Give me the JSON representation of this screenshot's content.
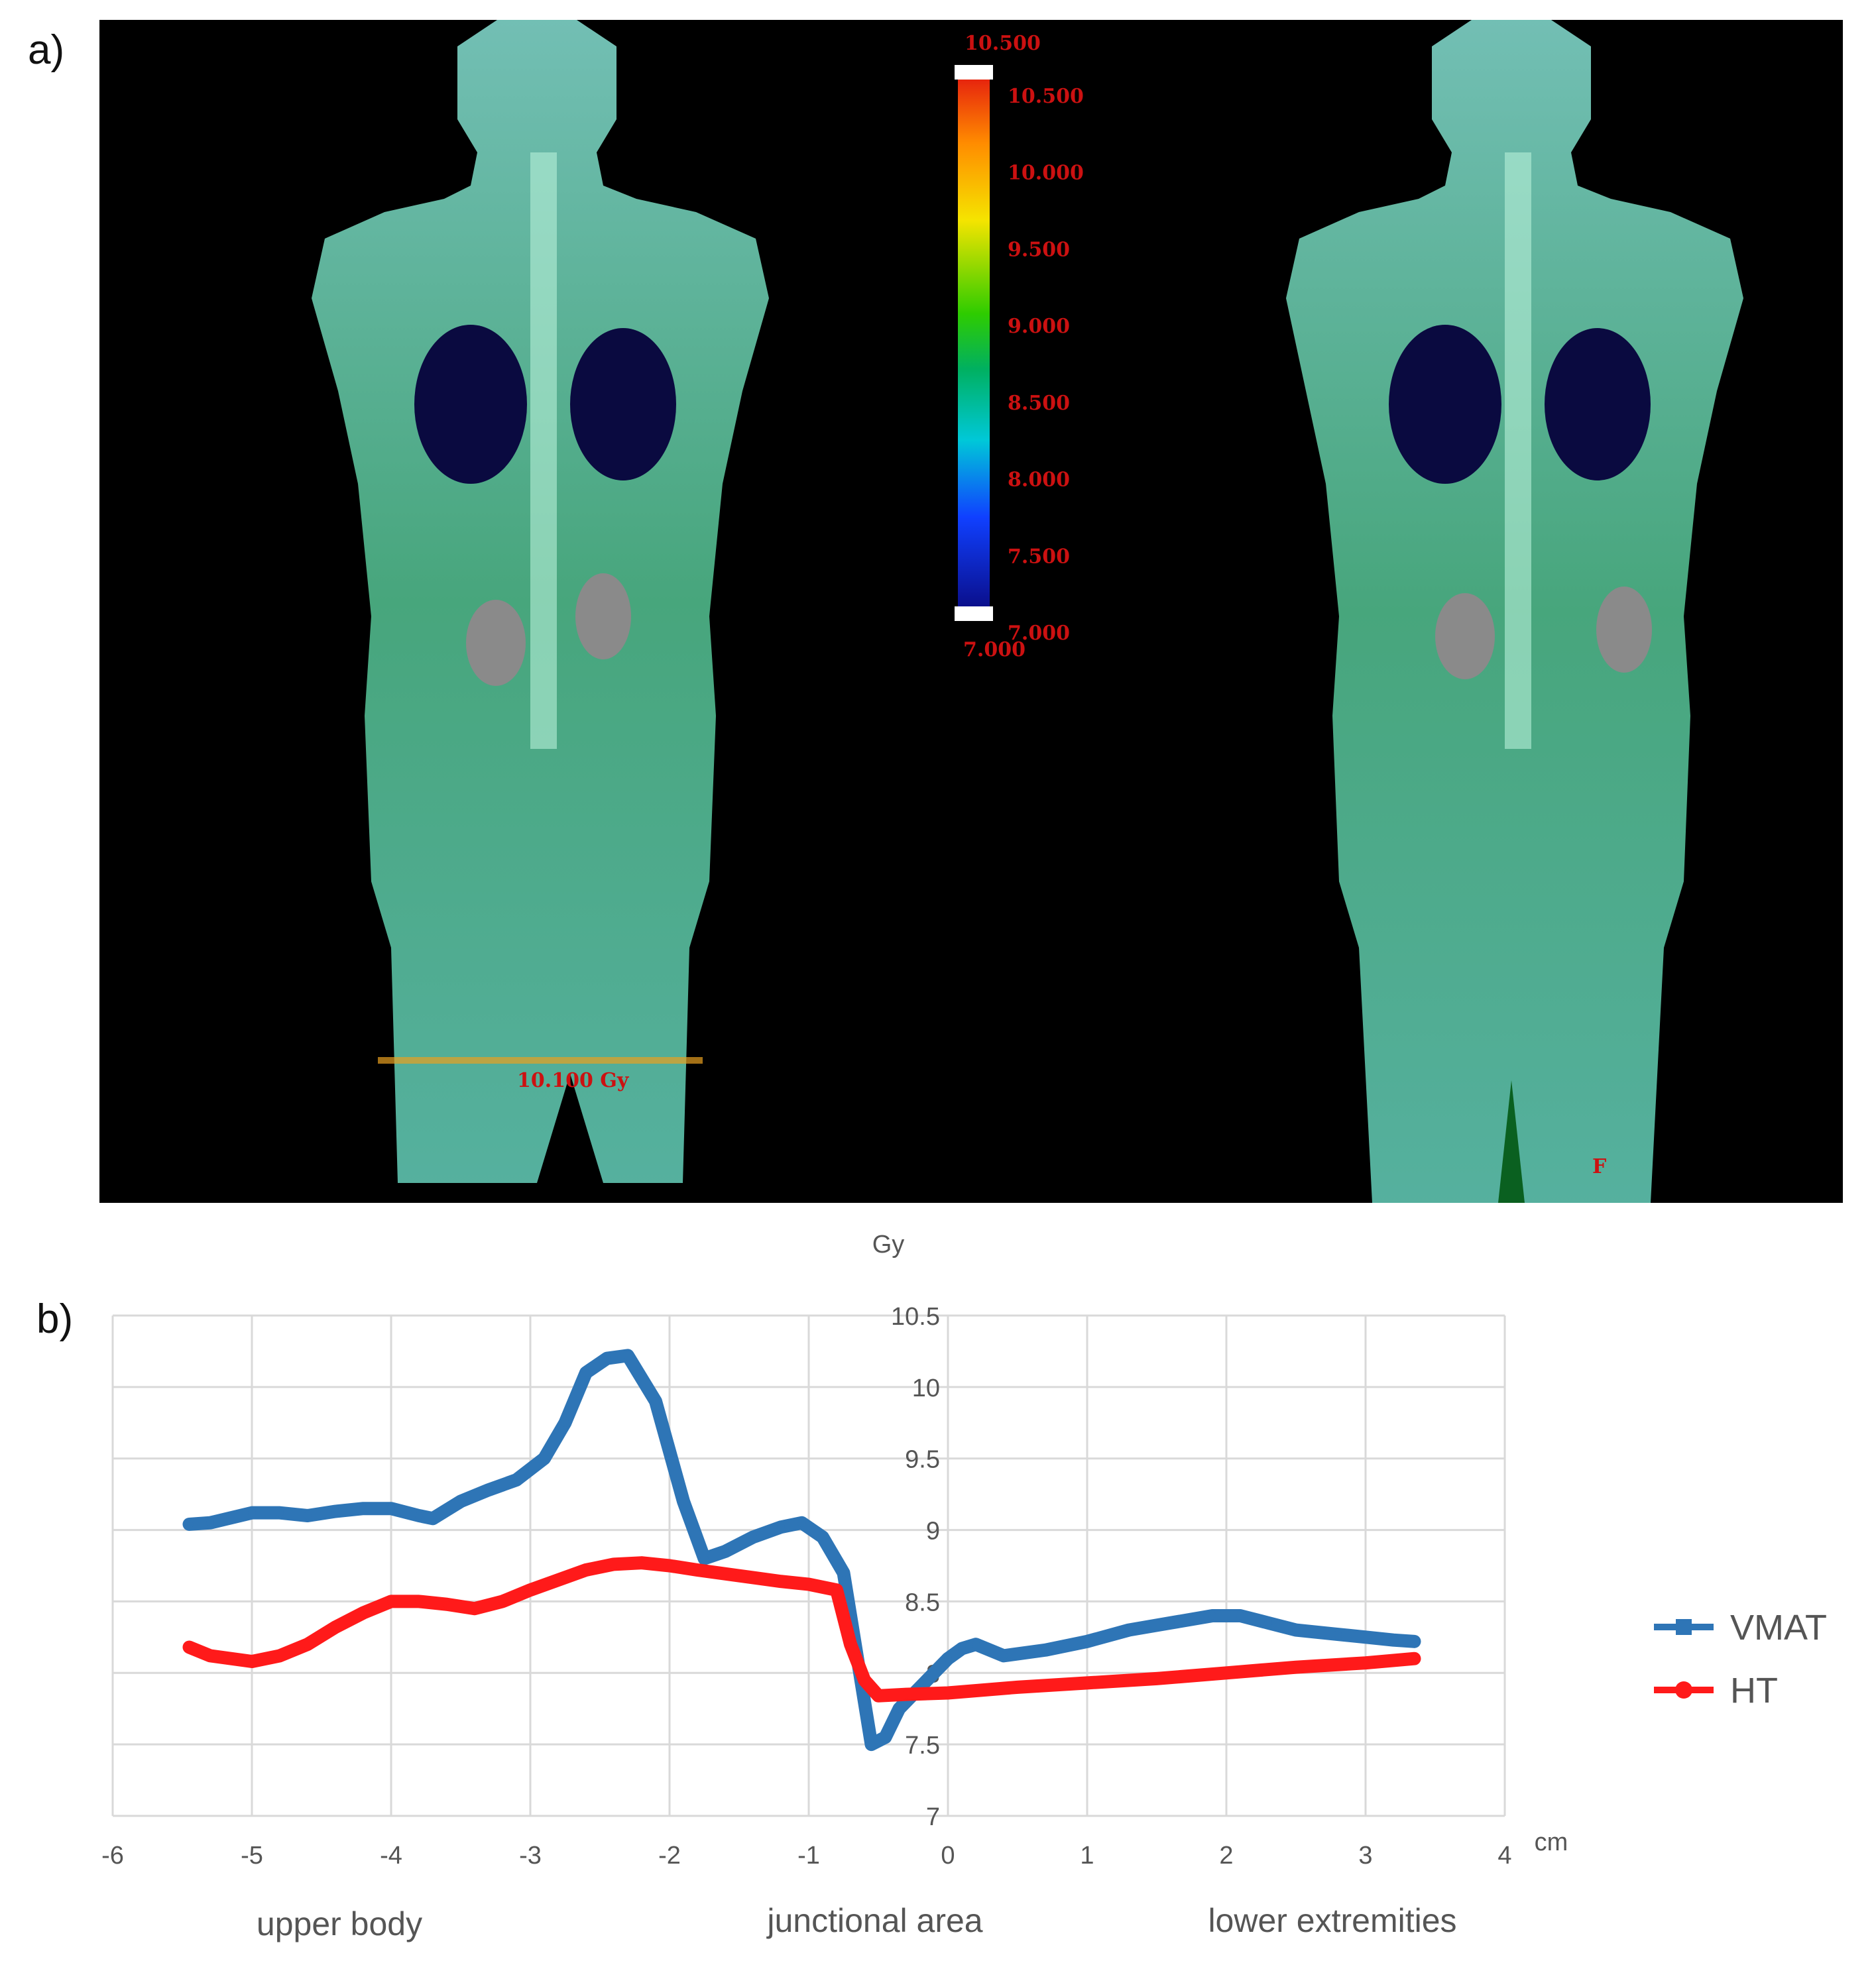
{
  "panels": {
    "a_label": "a)",
    "b_label": "b)"
  },
  "image": {
    "description_icons": [
      "ct-dose-overlay-left",
      "ct-dose-overlay-right"
    ],
    "colorbar": {
      "top_label": "10.500",
      "labels": [
        "10.500",
        "10.000",
        "9.500",
        "9.000",
        "8.500",
        "8.000",
        "7.500",
        "7.000"
      ],
      "bottom_label": "7.000",
      "colors": [
        "#e21010",
        "#ff8c00",
        "#f5e400",
        "#2ecc00",
        "#00b060",
        "#00c8d8",
        "#1040ff",
        "#0a0a80"
      ]
    },
    "marker_text": "10.100 Gy",
    "corner_letter": "F"
  },
  "chart_data": {
    "type": "line",
    "ylabel": "Gy",
    "xunit": "cm",
    "xlim": [
      -6,
      4
    ],
    "ylim": [
      7,
      10.5
    ],
    "xticks": [
      "-6",
      "-5",
      "-4",
      "-3",
      "-2",
      "-1",
      "0",
      "1",
      "2",
      "3",
      "4"
    ],
    "yticks": [
      "7",
      "7.5",
      "8",
      "8.5",
      "9",
      "9.5",
      "10",
      "10.5"
    ],
    "grid": true,
    "legend_position": "right",
    "regions": [
      "upper body",
      "junctional area",
      "lower extremities"
    ],
    "series": [
      {
        "name": "VMAT",
        "color": "#2e75b6",
        "x": [
          -5.45,
          -5.3,
          -5.0,
          -4.8,
          -4.6,
          -4.4,
          -4.2,
          -4.0,
          -3.8,
          -3.7,
          -3.5,
          -3.3,
          -3.1,
          -2.9,
          -2.75,
          -2.6,
          -2.45,
          -2.3,
          -2.1,
          -1.9,
          -1.75,
          -1.6,
          -1.4,
          -1.2,
          -1.05,
          -0.9,
          -0.75,
          -0.65,
          -0.55,
          -0.45,
          -0.35,
          -0.25,
          -0.1,
          0.0,
          0.1,
          0.2,
          0.4,
          0.7,
          1.0,
          1.3,
          1.6,
          1.9,
          2.1,
          2.3,
          2.5,
          2.8,
          3.0,
          3.2,
          3.35
        ],
        "values": [
          9.04,
          9.05,
          9.12,
          9.12,
          9.1,
          9.13,
          9.15,
          9.15,
          9.1,
          9.08,
          9.2,
          9.28,
          9.35,
          9.5,
          9.75,
          10.1,
          10.2,
          10.22,
          9.9,
          9.2,
          8.8,
          8.85,
          8.95,
          9.02,
          9.05,
          8.95,
          8.7,
          8.1,
          7.5,
          7.55,
          7.75,
          7.85,
          8.0,
          8.1,
          8.17,
          8.2,
          8.12,
          8.16,
          8.22,
          8.3,
          8.35,
          8.4,
          8.4,
          8.35,
          8.3,
          8.27,
          8.25,
          8.23,
          8.22
        ]
      },
      {
        "name": "HT",
        "color": "#ff1a1a",
        "x": [
          -5.45,
          -5.3,
          -5.0,
          -4.8,
          -4.6,
          -4.4,
          -4.2,
          -4.0,
          -3.8,
          -3.6,
          -3.4,
          -3.2,
          -3.0,
          -2.8,
          -2.6,
          -2.4,
          -2.2,
          -2.0,
          -1.8,
          -1.5,
          -1.2,
          -1.0,
          -0.8,
          -0.7,
          -0.6,
          -0.5,
          -0.3,
          0.0,
          0.5,
          1.0,
          1.5,
          2.0,
          2.5,
          3.0,
          3.35
        ],
        "values": [
          8.18,
          8.12,
          8.08,
          8.12,
          8.2,
          8.32,
          8.42,
          8.5,
          8.5,
          8.48,
          8.45,
          8.5,
          8.58,
          8.65,
          8.72,
          8.76,
          8.77,
          8.75,
          8.72,
          8.68,
          8.64,
          8.62,
          8.58,
          8.2,
          7.95,
          7.84,
          7.85,
          7.86,
          7.9,
          7.93,
          7.96,
          8.0,
          8.04,
          8.07,
          8.1
        ]
      }
    ]
  }
}
